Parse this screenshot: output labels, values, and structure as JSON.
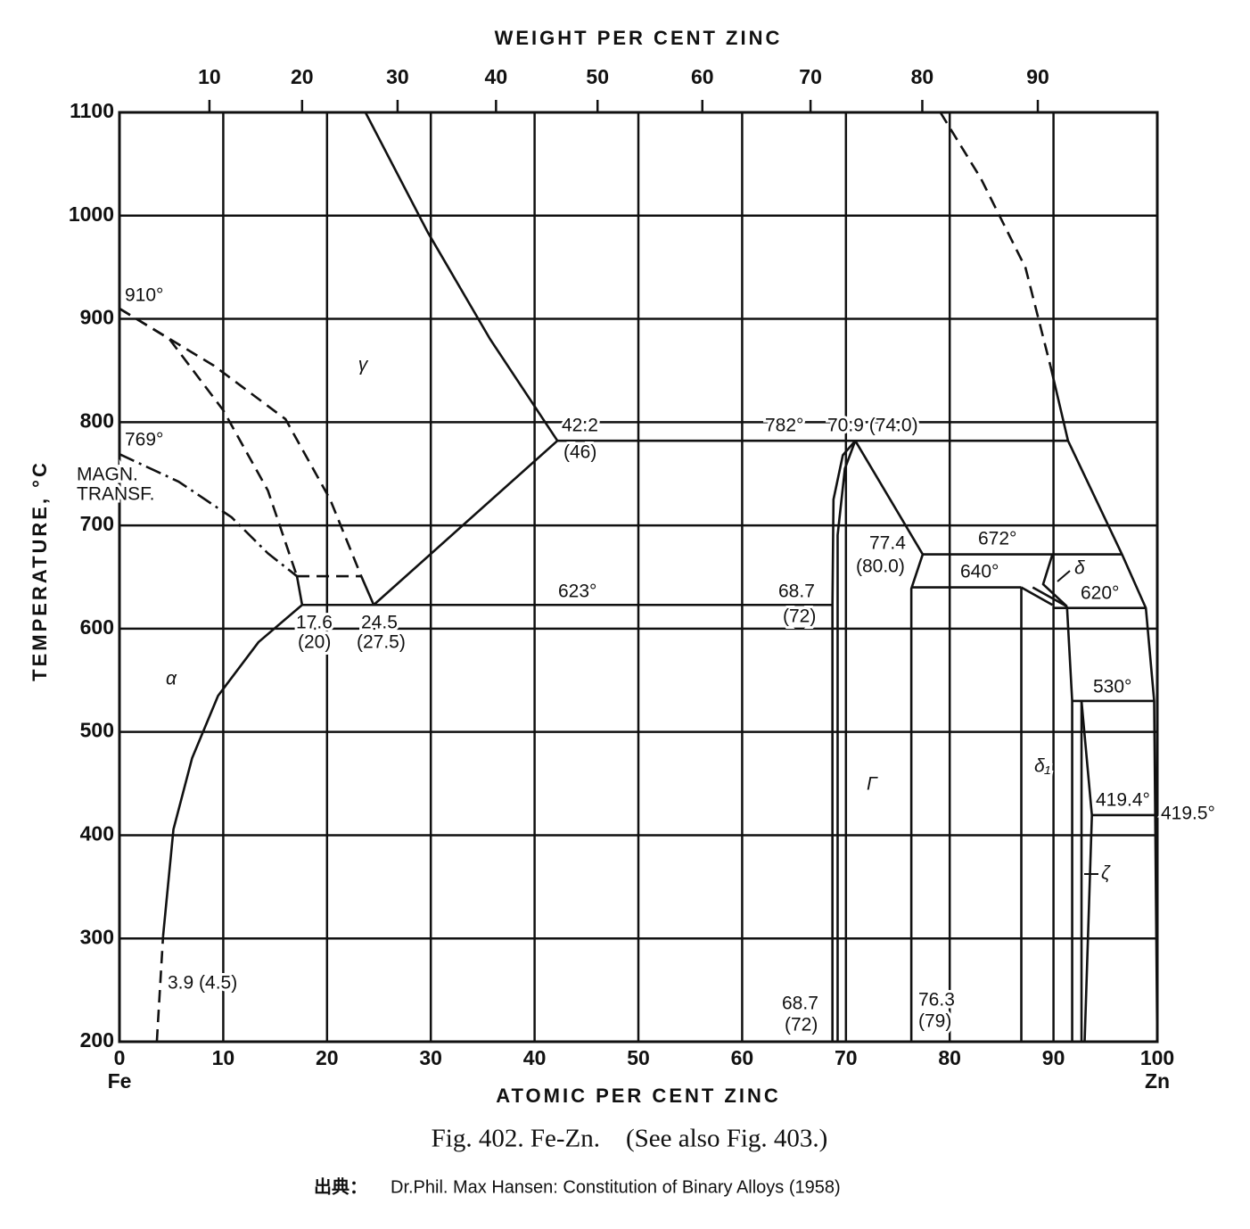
{
  "chart_data": {
    "type": "phase_diagram",
    "title": "WEIGHT PER CENT ZINC",
    "x_label": "ATOMIC PER CENT ZINC",
    "y_label": "TEMPERATURE, °C",
    "x_end_labels": [
      "Fe",
      "Zn"
    ],
    "caption": "Fig. 402. Fe-Zn.    (See also Fig. 403.)",
    "source_label": "出典：",
    "source": "Dr.Phil. Max Hansen: Constitution of Binary Alloys (1958)",
    "xlim": [
      0,
      100
    ],
    "ylim": [
      200,
      1100
    ],
    "xticks": [
      0,
      10,
      20,
      30,
      40,
      50,
      60,
      70,
      80,
      90,
      100
    ],
    "yticks": [
      200,
      300,
      400,
      500,
      600,
      700,
      800,
      900,
      1000,
      1100
    ],
    "x2ticks": [
      10,
      20,
      30,
      40,
      50,
      60,
      70,
      80,
      90
    ],
    "grid": true,
    "color": "#111111",
    "series": [
      {
        "style": "dashed",
        "x": [
          3.6,
          4.2
        ],
        "values": [
          200,
          302
        ]
      },
      {
        "style": "solid",
        "x": [
          4.2,
          5.2,
          7.0,
          9.5,
          13.4,
          17.6
        ],
        "values": [
          302,
          405.6,
          474.7,
          535,
          587,
          623
        ]
      },
      {
        "style": "solid",
        "x": [
          17.6,
          17.1
        ],
        "values": [
          623,
          650.8
        ]
      },
      {
        "style": "dashed",
        "x": [
          0,
          4.8,
          10.0,
          14.3,
          17.1
        ],
        "values": [
          910,
          880.6,
          811.5,
          733.8,
          650.8
        ]
      },
      {
        "style": "dashed",
        "x": [
          0,
          9.1,
          16.0,
          20.3,
          23.3
        ],
        "values": [
          910,
          854.7,
          802.9,
          725.1,
          650.8
        ]
      },
      {
        "style": "dashdot",
        "x": [
          0,
          5.7,
          10.8,
          14.3,
          17.1
        ],
        "values": [
          769,
          742.4,
          707.9,
          673,
          650.8
        ]
      },
      {
        "style": "dashed",
        "x": [
          17.1,
          23.3
        ],
        "values": [
          650.8,
          650.8
        ]
      },
      {
        "style": "solid",
        "x": [
          23.3,
          24.5
        ],
        "values": [
          650.8,
          623
        ]
      },
      {
        "style": "solid",
        "x": [
          24.5,
          42.2
        ],
        "values": [
          623,
          782
        ]
      },
      {
        "style": "solid",
        "x": [
          23.7,
          29.7,
          35.7,
          42.2
        ],
        "values": [
          1100,
          984,
          880.6,
          782
        ]
      },
      {
        "style": "solid",
        "x": [
          17.6,
          68.7
        ],
        "values": [
          623,
          623
        ]
      },
      {
        "style": "solid",
        "x": [
          42.2,
          91.4
        ],
        "values": [
          782,
          782
        ]
      },
      {
        "style": "solid",
        "x": [
          68.7,
          68.7,
          68.8,
          69.7,
          70.9
        ],
        "values": [
          200,
          623,
          725.1,
          768,
          782
        ]
      },
      {
        "style": "solid",
        "x": [
          69.2,
          69.2,
          69.9,
          70.9
        ],
        "values": [
          200,
          690.6,
          755,
          782
        ]
      },
      {
        "style": "solid",
        "x": [
          70.9,
          77.4
        ],
        "values": [
          782,
          672
        ]
      },
      {
        "style": "solid",
        "x": [
          77.4,
          76.3,
          76.3
        ],
        "values": [
          672,
          638.7,
          200
        ]
      },
      {
        "style": "solid",
        "x": [
          77.4,
          96.6
        ],
        "values": [
          672,
          672
        ]
      },
      {
        "style": "solid",
        "x": [
          76.3,
          86.9
        ],
        "values": [
          640,
          640
        ]
      },
      {
        "style": "solid",
        "x": [
          86.9,
          86.9
        ],
        "values": [
          640,
          200
        ]
      },
      {
        "style": "solid",
        "x": [
          86.9,
          89.9
        ],
        "values": [
          640,
          623
        ]
      },
      {
        "style": "solid",
        "x": [
          88.0,
          91.3
        ],
        "values": [
          640,
          621.5
        ]
      },
      {
        "style": "solid",
        "x": [
          89.9,
          89.0,
          91.3
        ],
        "values": [
          672,
          643,
          621.5
        ]
      },
      {
        "style": "solid",
        "x": [
          89.9,
          98.9
        ],
        "values": [
          620,
          620
        ]
      },
      {
        "style": "solid",
        "x": [
          91.3,
          91.8,
          91.8
        ],
        "values": [
          621.5,
          530,
          200
        ]
      },
      {
        "style": "solid",
        "x": [
          91.4,
          96.6,
          98.9,
          99.7,
          100
        ],
        "values": [
          782,
          672,
          620,
          530,
          200
        ]
      },
      {
        "style": "solid",
        "x": [
          91.8,
          99.7
        ],
        "values": [
          530,
          530
        ]
      },
      {
        "style": "solid",
        "x": [
          92.7,
          92.7
        ],
        "values": [
          530,
          200
        ]
      },
      {
        "style": "solid",
        "x": [
          92.7,
          93.7,
          93.0
        ],
        "values": [
          530,
          419.4,
          200
        ]
      },
      {
        "style": "solid",
        "x": [
          93.7,
          100
        ],
        "values": [
          419.4,
          419.4
        ]
      },
      {
        "style": "dashed",
        "x": [
          79.1,
          83.0,
          87.3,
          89.7
        ],
        "values": [
          1100,
          1036,
          949.6,
          854.7
        ]
      },
      {
        "style": "solid",
        "x": [
          89.7,
          91.4
        ],
        "values": [
          854.7,
          782
        ]
      }
    ],
    "annotations": [
      "910°",
      "769°",
      "MAGN.",
      "TRANSF.",
      "γ",
      "42.2",
      "(46)",
      "782°",
      "70.9 (74.0)",
      "17.6",
      "(20)",
      "24.5",
      "(27.5)",
      "623°",
      "68.7",
      "(72)",
      "α",
      "77.4",
      "(80.0)",
      "672°",
      "640°",
      "δ",
      "620°",
      "530°",
      "δ₁",
      "Γ",
      "419.4°",
      "419.5°",
      "ζ",
      "3.9 (4.5)",
      "68.7",
      "(72)",
      "76.3",
      "(79)"
    ]
  }
}
